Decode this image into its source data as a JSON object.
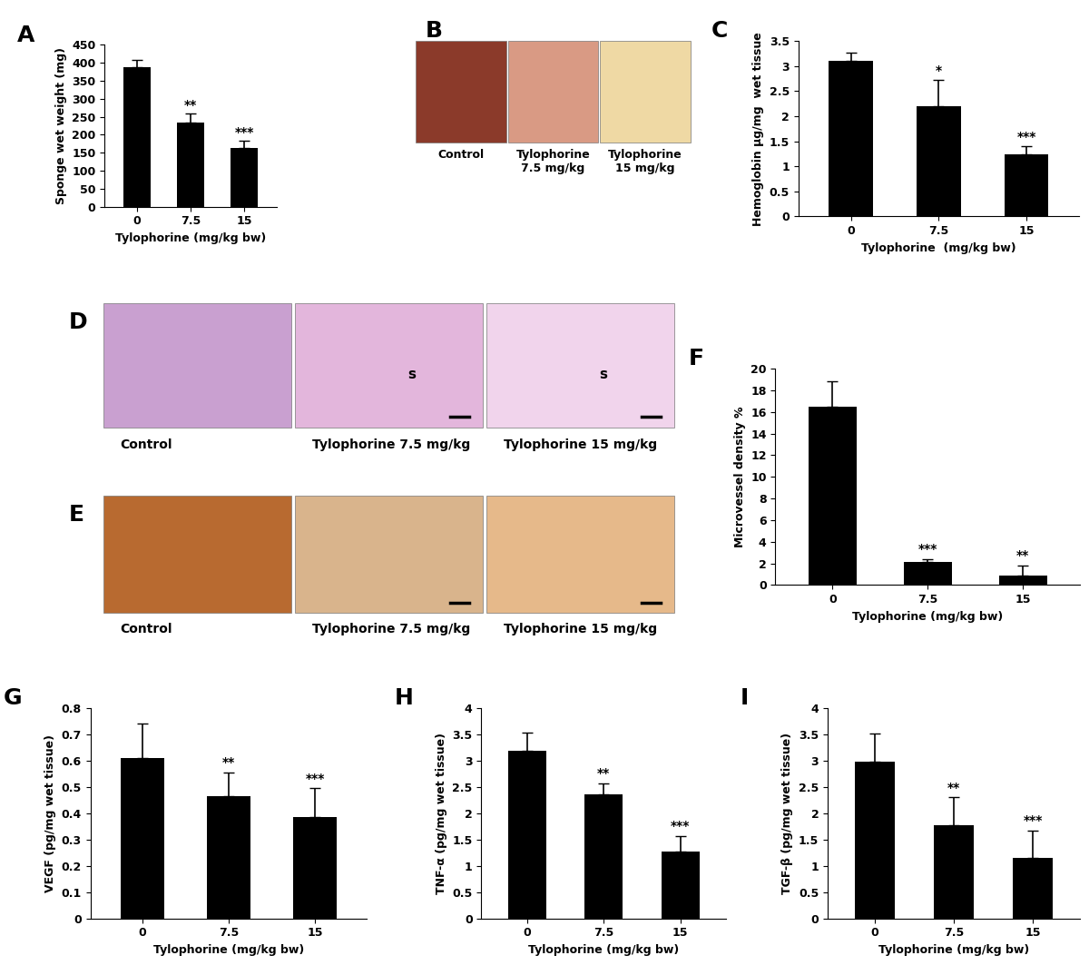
{
  "chart_data": [
    {
      "type": "bar",
      "title": "A",
      "categories": [
        "0",
        "7.5",
        "15"
      ],
      "values": [
        388,
        233,
        163
      ],
      "errors": [
        20,
        25,
        20
      ],
      "annotations": [
        null,
        "**",
        "***"
      ],
      "color": "#000000",
      "x_label": "Tylophorine (mg/kg bw)",
      "y_label": "Sponge wet weight (mg)",
      "ylim": [
        0,
        450
      ],
      "yticks": [
        0,
        50,
        100,
        150,
        200,
        250,
        300,
        350,
        400,
        450
      ]
    },
    {
      "type": "bar",
      "title": "C",
      "categories": [
        "0",
        "7.5",
        "15"
      ],
      "values": [
        3.1,
        2.2,
        1.23
      ],
      "errors": [
        0.17,
        0.52,
        0.18
      ],
      "annotations": [
        null,
        "*",
        "***"
      ],
      "color": "#000000",
      "x_label": "Tylophorine  (mg/kg bw)",
      "y_label": "Hemoglobin µg/mg  wet tissue",
      "ylim": [
        0,
        3.5
      ],
      "yticks": [
        0,
        0.5,
        1,
        1.5,
        2,
        2.5,
        3,
        3.5
      ]
    },
    {
      "type": "bar",
      "title": "F",
      "categories": [
        "0",
        "7.5",
        "15"
      ],
      "values": [
        16.5,
        2.1,
        0.9
      ],
      "errors": [
        2.3,
        0.3,
        0.9
      ],
      "annotations": [
        null,
        "***",
        "**"
      ],
      "color": "#000000",
      "x_label": "Tylophorine (mg/kg bw)",
      "y_label": "Microvessel density %",
      "ylim": [
        0,
        20
      ],
      "yticks": [
        0,
        2,
        4,
        6,
        8,
        10,
        12,
        14,
        16,
        18,
        20
      ]
    },
    {
      "type": "bar",
      "title": "G",
      "categories": [
        "0",
        "7.5",
        "15"
      ],
      "values": [
        0.61,
        0.465,
        0.385
      ],
      "errors": [
        0.13,
        0.09,
        0.11
      ],
      "annotations": [
        null,
        "**",
        "***"
      ],
      "color": "#000000",
      "x_label": "Tylophorine (mg/kg bw)",
      "y_label": "VEGF (pg/mg wet tissue)",
      "ylim": [
        0,
        0.8
      ],
      "yticks": [
        0,
        0.1,
        0.2,
        0.3,
        0.4,
        0.5,
        0.6,
        0.7,
        0.8
      ]
    },
    {
      "type": "bar",
      "title": "H",
      "categories": [
        "0",
        "7.5",
        "15"
      ],
      "values": [
        3.18,
        2.35,
        1.27
      ],
      "errors": [
        0.35,
        0.22,
        0.3
      ],
      "annotations": [
        null,
        "**",
        "***"
      ],
      "color": "#000000",
      "x_label": "Tylophorine (mg/kg bw)",
      "y_label": "TNF-α (pg/mg wet tissue)",
      "ylim": [
        0,
        4
      ],
      "yticks": [
        0,
        0.5,
        1,
        1.5,
        2,
        2.5,
        3,
        3.5,
        4
      ]
    },
    {
      "type": "bar",
      "title": "I",
      "categories": [
        "0",
        "7.5",
        "15"
      ],
      "values": [
        2.98,
        1.77,
        1.15
      ],
      "errors": [
        0.53,
        0.53,
        0.52
      ],
      "annotations": [
        null,
        "**",
        "***"
      ],
      "color": "#000000",
      "x_label": "Tylophorine (mg/kg bw)",
      "y_label": "TGF-β (pg/mg wet tissue)",
      "ylim": [
        0,
        4
      ],
      "yticks": [
        0,
        0.5,
        1,
        1.5,
        2,
        2.5,
        3,
        3.5,
        4
      ]
    }
  ],
  "image_panels": [
    {
      "title": "B",
      "captions": [
        "Control",
        "Tylophorine\n7.5 mg/kg",
        "Tylophorine\n15 mg/kg"
      ]
    },
    {
      "title": "D",
      "captions": [
        "Control",
        "Tylophorine 7.5 mg/kg",
        "Tylophorine 15 mg/kg"
      ],
      "annotations": [
        null,
        "s",
        "s"
      ]
    },
    {
      "title": "E",
      "captions": [
        "Control",
        "Tylophorine 7.5 mg/kg",
        "Tylophorine 15 mg/kg"
      ]
    }
  ]
}
